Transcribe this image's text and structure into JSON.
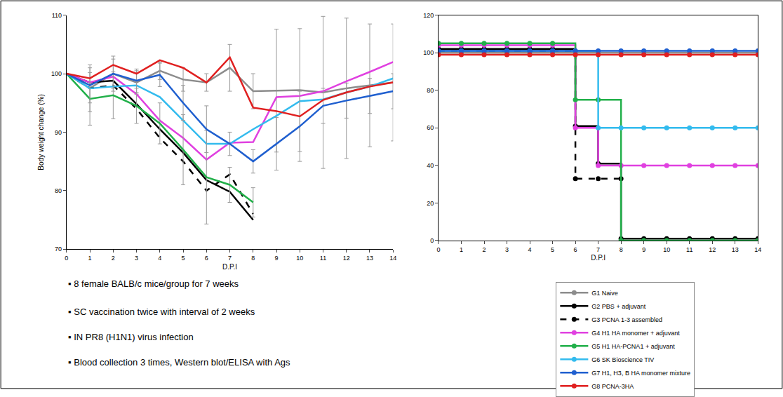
{
  "chart_data": [
    {
      "type": "line",
      "y_label": "Body weight change (%)",
      "x_label": "D.P.I",
      "x": [
        0,
        1,
        2,
        3,
        4,
        5,
        6,
        7,
        8,
        9,
        10,
        11,
        12,
        13,
        14
      ],
      "xlim": [
        0,
        14
      ],
      "xticks": [
        0,
        1,
        2,
        3,
        4,
        5,
        6,
        7,
        8,
        9,
        10,
        11,
        12,
        13,
        14
      ],
      "ylim": [
        70,
        110
      ],
      "yticks": [
        70,
        80,
        90,
        100,
        110
      ],
      "grid": false,
      "annotations": [
        "▪ 8 female BALB/c mice/group for 7 weeks",
        "▪ SC vaccination twice with interval of 2 weeks",
        "▪ IN PR8 (H1N1) virus infection",
        "▪ Blood collection 3 times, Western blot/ELISA with Ags"
      ],
      "series": [
        {
          "name": "G1 Naive",
          "color": "#8c8c8c",
          "values": [
            100,
            97.5,
            100,
            98.5,
            100.5,
            99,
            98.5,
            101,
            97,
            97.1,
            97.2,
            96.8,
            97.5,
            98,
            98.5
          ],
          "errors": [
            0,
            4,
            3,
            2,
            1.5,
            2,
            1.5,
            4,
            3,
            10.5,
            10.5,
            13,
            12,
            10.5,
            10
          ]
        },
        {
          "name": "G2 PBS + adjuvant",
          "color": "#000000",
          "values": [
            100,
            98.5,
            98.8,
            94.8,
            90.5,
            86.5,
            81.8,
            79.8,
            75,
            null,
            null,
            null,
            null,
            null,
            null
          ]
        },
        {
          "name": "G3 PCNA 1-3 assembled",
          "color": "#000000",
          "line_style": "dash",
          "values": [
            100,
            97.5,
            98,
            94,
            89,
            85,
            80,
            82.8,
            76,
            null,
            null,
            null,
            null,
            null,
            null
          ]
        },
        {
          "name": "G4 H1 HA monomer + adjuvant",
          "color": "#e040e0",
          "values": [
            100,
            98.5,
            99.5,
            96.5,
            92,
            89,
            85.3,
            88.2,
            88.3,
            96,
            96.2,
            97,
            98.7,
            100.3,
            102
          ]
        },
        {
          "name": "G5 H1 HA-PCNA1 + adjuvant",
          "color": "#22b04a",
          "values": [
            100,
            95.7,
            96.3,
            94.5,
            91.5,
            87,
            82.3,
            81,
            78,
            null,
            null,
            null,
            null,
            null,
            null
          ],
          "errors": [
            0,
            4.5,
            4,
            3,
            3.5,
            6,
            8,
            3,
            2.5,
            null,
            null,
            null,
            null,
            null,
            null
          ]
        },
        {
          "name": "G6 SK Bioscience TIV",
          "color": "#33bbee",
          "values": [
            100,
            97.5,
            97.8,
            98,
            96,
            92,
            88,
            88,
            90.5,
            92.8,
            95.3,
            95.6,
            96.8,
            97.8,
            99.2
          ]
        },
        {
          "name": "G7 H1, H3, B HA monomer mixture",
          "color": "#1f5fcf",
          "values": [
            100,
            98,
            100,
            98.8,
            99.8,
            95,
            90.5,
            88,
            85,
            88,
            91,
            94.5,
            95.4,
            96.2,
            97
          ],
          "errors": [
            0,
            3,
            2.5,
            2,
            2,
            3,
            4,
            2,
            2,
            4.5,
            6,
            3,
            3,
            3,
            3
          ]
        },
        {
          "name": "G8 PCNA-3HA",
          "color": "#e02020",
          "values": [
            100,
            99.2,
            101.5,
            100,
            102.3,
            101,
            98.5,
            102.8,
            94.2,
            93.6,
            92.7,
            95.5,
            96.8,
            97.8,
            98.5
          ]
        }
      ]
    },
    {
      "type": "line",
      "x_label": "D.P.I",
      "x": [
        0,
        1,
        2,
        3,
        4,
        5,
        6,
        7,
        8,
        9,
        10,
        11,
        12,
        13,
        14
      ],
      "xlim": [
        0,
        14
      ],
      "xticks": [
        0,
        1,
        2,
        3,
        4,
        5,
        6,
        7,
        8,
        9,
        10,
        11,
        12,
        13,
        14
      ],
      "ylim": [
        0,
        120
      ],
      "yticks": [
        0,
        20,
        40,
        60,
        80,
        100,
        120
      ],
      "grid": false,
      "marker": "circle",
      "legend": "lower right",
      "series": [
        {
          "name": "G1 Naive",
          "color": "#8c8c8c",
          "values": [
            100,
            100,
            100,
            100,
            100,
            100,
            100,
            100,
            100,
            100,
            100,
            100,
            100,
            100,
            100
          ]
        },
        {
          "name": "G2 PBS + adjuvant",
          "color": "#000000",
          "values": [
            102,
            102,
            102,
            102,
            102,
            102,
            61,
            41,
            1,
            1,
            1,
            1,
            1,
            1,
            1
          ]
        },
        {
          "name": "G3 PCNA 1-3 assembled",
          "color": "#000000",
          "line_style": "dash",
          "values": [
            101,
            101,
            101,
            101,
            101,
            101,
            33,
            33,
            33,
            null,
            null,
            null,
            null,
            null,
            null
          ]
        },
        {
          "name": "G4 H1 HA monomer + adjuvant",
          "color": "#e040e0",
          "values": [
            104,
            104,
            104,
            104,
            104,
            104,
            60,
            40,
            40,
            40,
            40,
            40,
            40,
            40,
            40
          ]
        },
        {
          "name": "G5 H1 HA-PCNA1 + adjuvant",
          "color": "#22b04a",
          "values": [
            105,
            105,
            105,
            105,
            105,
            105,
            75,
            75,
            0,
            0,
            0,
            0,
            0,
            0,
            0
          ]
        },
        {
          "name": "G6 SK Bioscience TIV",
          "color": "#33bbee",
          "values": [
            101,
            101,
            101,
            101,
            101,
            101,
            101,
            60,
            60,
            60,
            60,
            60,
            60,
            60,
            60
          ]
        },
        {
          "name": "G7 H1, H3, B HA monomer mixture",
          "color": "#1f5fcf",
          "values": [
            101,
            101,
            101,
            101,
            101,
            101,
            101,
            101,
            101,
            101,
            101,
            101,
            101,
            101,
            101
          ]
        },
        {
          "name": "G8 PCNA-3HA",
          "color": "#e02020",
          "values": [
            99,
            99,
            99,
            99,
            99,
            99,
            99,
            99,
            99,
            99,
            99,
            99,
            99,
            99,
            99
          ]
        }
      ]
    }
  ]
}
